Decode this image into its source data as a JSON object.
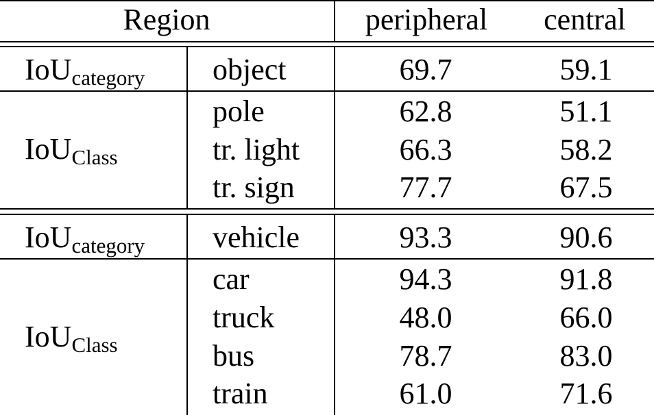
{
  "table": {
    "header": {
      "region": "Region",
      "peripheral": "peripheral",
      "central": "central"
    },
    "groups": [
      {
        "blocks": [
          {
            "metric_main": "IoU",
            "metric_sub": "category",
            "rows": [
              {
                "label": "object",
                "peripheral": "69.7",
                "central": "59.1"
              }
            ]
          },
          {
            "metric_main": "IoU",
            "metric_sub": "Class",
            "rows": [
              {
                "label": "pole",
                "peripheral": "62.8",
                "central": "51.1"
              },
              {
                "label": "tr. light",
                "peripheral": "66.3",
                "central": "58.2"
              },
              {
                "label": "tr. sign",
                "peripheral": "77.7",
                "central": "67.5"
              }
            ]
          }
        ]
      },
      {
        "blocks": [
          {
            "metric_main": "IoU",
            "metric_sub": "category",
            "rows": [
              {
                "label": "vehicle",
                "peripheral": "93.3",
                "central": "90.6"
              }
            ]
          },
          {
            "metric_main": "IoU",
            "metric_sub": "Class",
            "rows": [
              {
                "label": "car",
                "peripheral": "94.3",
                "central": "91.8"
              },
              {
                "label": "truck",
                "peripheral": "48.0",
                "central": "66.0"
              },
              {
                "label": "bus",
                "peripheral": "78.7",
                "central": "83.0"
              },
              {
                "label": "train",
                "peripheral": "61.0",
                "central": "71.6"
              }
            ]
          }
        ]
      }
    ]
  }
}
